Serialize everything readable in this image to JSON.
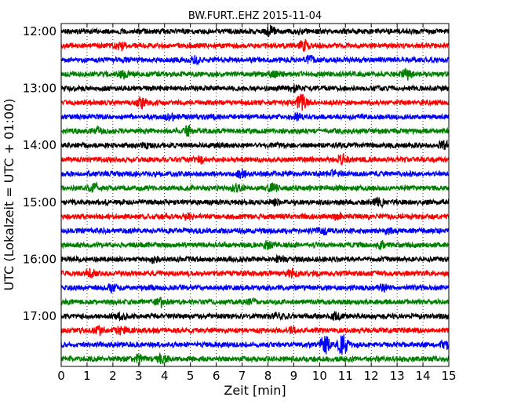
{
  "chart_data": {
    "type": "line",
    "title": "BW.FURT..EHZ 2015-11-04",
    "xlabel": "Zeit  [min]",
    "ylabel": "UTC (Lokalzeit = UTC + 01:00)",
    "xlim": [
      0,
      15
    ],
    "x_ticks": [
      "0",
      "1",
      "2",
      "3",
      "4",
      "5",
      "6",
      "7",
      "8",
      "9",
      "10",
      "11",
      "12",
      "13",
      "14",
      "15"
    ],
    "y_tick_labels": [
      "12:00",
      "13:00",
      "14:00",
      "15:00",
      "16:00",
      "17:00"
    ],
    "trace_minutes_per_line": 15,
    "grid": "vertical-dotted",
    "colors": [
      "#000000",
      "#ff0000",
      "#0000ff",
      "#008000"
    ],
    "series": [
      {
        "start": "12:00",
        "color": "#000000",
        "events": [
          [
            8.1,
            0.6
          ]
        ]
      },
      {
        "start": "12:15",
        "color": "#ff0000",
        "events": [
          [
            2.3,
            0.5
          ],
          [
            9.4,
            0.7
          ]
        ]
      },
      {
        "start": "12:30",
        "color": "#0000ff",
        "events": [
          [
            5.2,
            0.4
          ],
          [
            9.6,
            0.4
          ]
        ]
      },
      {
        "start": "12:45",
        "color": "#008000",
        "events": [
          [
            2.4,
            0.5
          ],
          [
            13.4,
            0.9
          ],
          [
            8.2,
            0.4
          ]
        ]
      },
      {
        "start": "13:00",
        "color": "#000000",
        "events": [
          [
            9.0,
            0.4
          ]
        ]
      },
      {
        "start": "13:15",
        "color": "#ff0000",
        "events": [
          [
            3.1,
            0.7
          ],
          [
            9.3,
            1.3
          ]
        ]
      },
      {
        "start": "13:30",
        "color": "#0000ff",
        "events": [
          [
            4.2,
            0.4
          ],
          [
            9.1,
            0.4
          ]
        ]
      },
      {
        "start": "13:45",
        "color": "#008000",
        "events": [
          [
            4.9,
            0.8
          ],
          [
            1.4,
            0.4
          ]
        ]
      },
      {
        "start": "14:00",
        "color": "#000000",
        "events": [
          [
            14.8,
            0.5
          ],
          [
            3.3,
            0.3
          ]
        ]
      },
      {
        "start": "14:15",
        "color": "#ff0000",
        "events": [
          [
            10.9,
            0.6
          ],
          [
            5.4,
            0.4
          ]
        ]
      },
      {
        "start": "14:30",
        "color": "#0000ff",
        "events": [
          [
            7.0,
            0.5
          ],
          [
            10.5,
            0.3
          ]
        ]
      },
      {
        "start": "14:45",
        "color": "#008000",
        "events": [
          [
            1.3,
            0.5
          ],
          [
            6.8,
            0.5
          ],
          [
            8.2,
            0.5
          ]
        ]
      },
      {
        "start": "15:00",
        "color": "#000000",
        "events": [
          [
            12.3,
            0.6
          ],
          [
            8.3,
            0.3
          ]
        ]
      },
      {
        "start": "15:15",
        "color": "#ff0000",
        "events": [
          [
            4.9,
            0.4
          ],
          [
            10.7,
            0.3
          ]
        ]
      },
      {
        "start": "15:30",
        "color": "#0000ff",
        "events": [
          [
            10.1,
            0.5
          ],
          [
            12.6,
            0.4
          ]
        ]
      },
      {
        "start": "15:45",
        "color": "#008000",
        "events": [
          [
            8.0,
            0.5
          ],
          [
            12.4,
            0.4
          ]
        ]
      },
      {
        "start": "16:00",
        "color": "#000000",
        "events": [
          [
            8.5,
            0.4
          ],
          [
            3.6,
            0.3
          ]
        ]
      },
      {
        "start": "16:15",
        "color": "#ff0000",
        "events": [
          [
            1.1,
            0.5
          ],
          [
            8.9,
            0.4
          ]
        ]
      },
      {
        "start": "16:30",
        "color": "#0000ff",
        "events": [
          [
            2.0,
            0.6
          ],
          [
            12.5,
            0.5
          ]
        ]
      },
      {
        "start": "16:45",
        "color": "#008000",
        "events": [
          [
            3.8,
            0.7
          ],
          [
            7.4,
            0.3
          ]
        ]
      },
      {
        "start": "17:00",
        "color": "#000000",
        "events": [
          [
            2.3,
            0.4
          ],
          [
            10.6,
            0.4
          ],
          [
            8.4,
            0.3
          ]
        ]
      },
      {
        "start": "17:15",
        "color": "#ff0000",
        "events": [
          [
            1.5,
            0.5
          ],
          [
            2.3,
            0.6
          ],
          [
            9.0,
            0.4
          ]
        ]
      },
      {
        "start": "17:30",
        "color": "#0000ff",
        "events": [
          [
            10.2,
            1.3
          ],
          [
            10.9,
            1.4
          ],
          [
            14.9,
            0.6
          ]
        ]
      },
      {
        "start": "17:45",
        "color": "#008000",
        "events": [
          [
            3.0,
            0.6
          ],
          [
            3.9,
            0.7
          ]
        ]
      }
    ]
  }
}
